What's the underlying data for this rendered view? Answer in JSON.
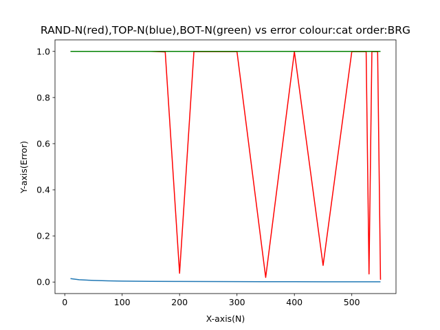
{
  "chart_data": {
    "type": "line",
    "title": "RAND-N(red),TOP-N(blue),BOT-N(green) vs error colour:cat order:BRG",
    "xlabel": "X-axis(N)",
    "ylabel": "Y-axis(Error)",
    "xlim": [
      -17,
      577
    ],
    "ylim": [
      -0.05,
      1.05
    ],
    "xticks": [
      0,
      100,
      200,
      300,
      400,
      500
    ],
    "yticks": [
      0.0,
      0.2,
      0.4,
      0.6,
      0.8,
      1.0
    ],
    "ytick_labels": [
      "0.0",
      "0.2",
      "0.4",
      "0.6",
      "0.8",
      "1.0"
    ],
    "grid": false,
    "series": [
      {
        "color": "#1f77b4",
        "x": [
          10,
          25,
          50,
          75,
          100,
          150,
          200,
          250,
          300,
          350,
          400,
          450,
          500,
          525,
          530,
          535,
          540,
          550
        ],
        "y": [
          0.015,
          0.01,
          0.007,
          0.005,
          0.004,
          0.003,
          0.0025,
          0.002,
          0.0017,
          0.0015,
          0.0013,
          0.0012,
          0.001,
          0.001,
          0.001,
          0.001,
          0.001,
          0.001
        ]
      },
      {
        "color": "#ff0000",
        "x": [
          10,
          100,
          150,
          175,
          200,
          225,
          300,
          350,
          400,
          450,
          500,
          525,
          530,
          535,
          540,
          545,
          550
        ],
        "y": [
          1.0,
          1.0,
          1.0,
          0.998,
          0.038,
          0.999,
          0.999,
          0.02,
          0.999,
          0.072,
          0.999,
          0.999,
          0.035,
          0.999,
          0.999,
          0.999,
          0.01
        ]
      },
      {
        "color": "#008000",
        "x": [
          10,
          100,
          200,
          300,
          400,
          500,
          550
        ],
        "y": [
          1.0,
          1.0,
          1.0,
          1.0,
          1.0,
          1.0,
          1.0
        ]
      }
    ]
  }
}
